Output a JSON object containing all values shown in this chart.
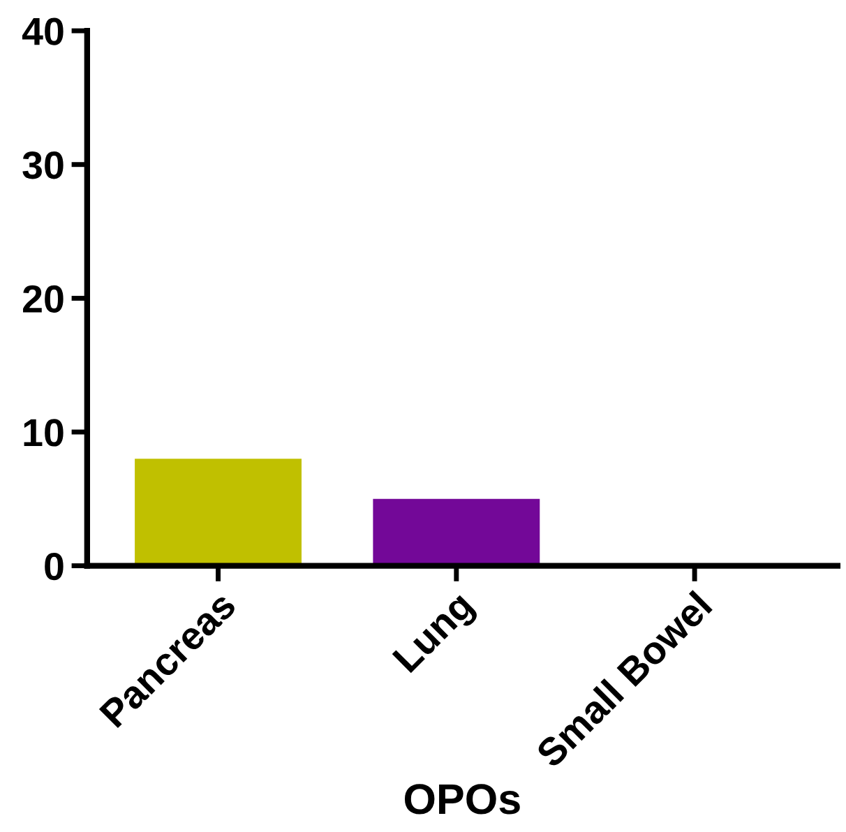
{
  "chart_data": {
    "type": "bar",
    "xlabel": "OPOs",
    "categories": [
      "Pancreas",
      "Lung",
      "Small Bowel"
    ],
    "values": [
      8,
      5,
      0
    ],
    "colors": [
      "#c0c000",
      "#730898",
      "#000000"
    ],
    "ylim": [
      0,
      40
    ],
    "yticks": [
      0,
      10,
      20,
      30,
      40
    ],
    "grid": false,
    "legend": false
  }
}
